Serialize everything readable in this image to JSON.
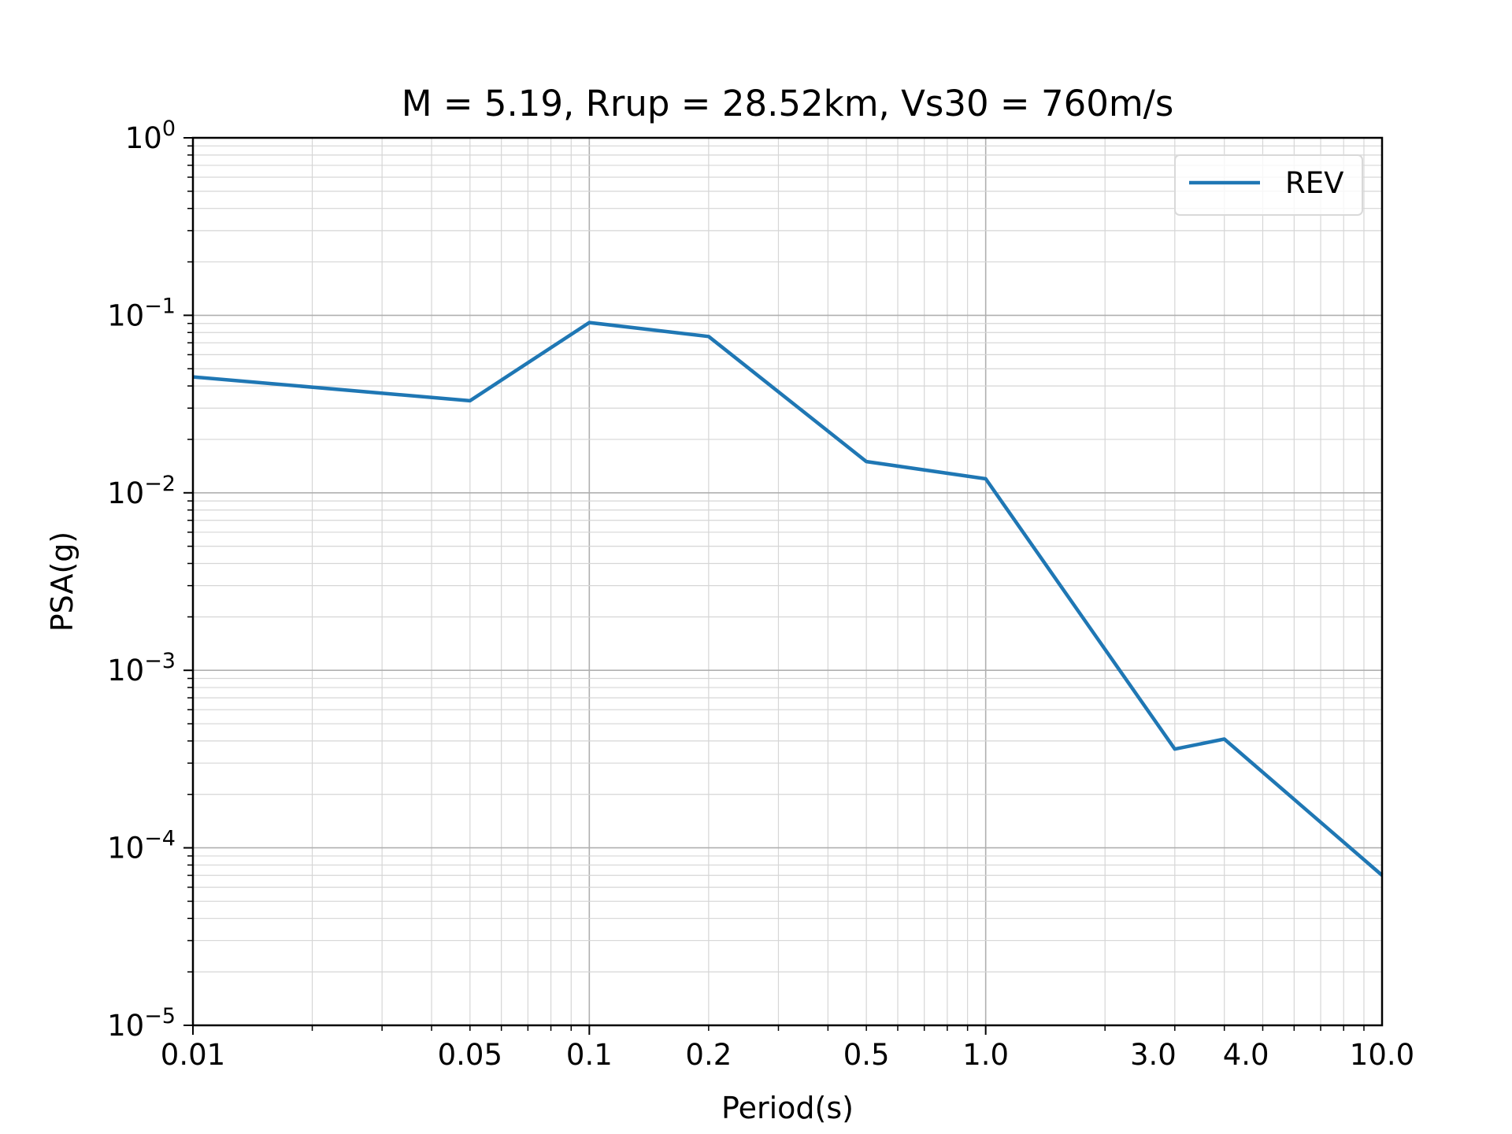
{
  "chart_data": {
    "type": "line",
    "title": "M = 5.19, Rrup = 28.52km, Vs30 = 760m/s",
    "xlabel": "Period(s)",
    "ylabel": "PSA(g)",
    "xscale": "log",
    "yscale": "log",
    "xlim": [
      0.01,
      10.0
    ],
    "ylim": [
      1e-05,
      1
    ],
    "grid": "on (major and minor)",
    "legend_placement": "top-right",
    "x_ticks": [
      {
        "value": 0.01,
        "label": "0.01"
      },
      {
        "value": 0.05,
        "label": "0.05"
      },
      {
        "value": 0.1,
        "label": "0.1"
      },
      {
        "value": 0.2,
        "label": "0.2"
      },
      {
        "value": 0.5,
        "label": "0.5"
      },
      {
        "value": 1.0,
        "label": "1.0"
      },
      {
        "value": 3.0,
        "label": "3.0"
      },
      {
        "value": 4.0,
        "label": "4.0"
      },
      {
        "value": 10.0,
        "label": "10.0"
      }
    ],
    "y_ticks": [
      {
        "value": 1,
        "base": "10",
        "exp": "0"
      },
      {
        "value": 0.1,
        "base": "10",
        "exp": "−1"
      },
      {
        "value": 0.01,
        "base": "10",
        "exp": "−2"
      },
      {
        "value": 0.001,
        "base": "10",
        "exp": "−3"
      },
      {
        "value": 0.0001,
        "base": "10",
        "exp": "−4"
      },
      {
        "value": 1e-05,
        "base": "10",
        "exp": "−5"
      }
    ],
    "series": [
      {
        "name": "REV",
        "color": "#1f77b4",
        "x": [
          0.01,
          0.05,
          0.1,
          0.2,
          0.5,
          1.0,
          3.0,
          4.0,
          10.0
        ],
        "y": [
          0.045,
          0.033,
          0.091,
          0.076,
          0.015,
          0.012,
          0.00036,
          0.00041,
          7e-05
        ]
      }
    ]
  }
}
